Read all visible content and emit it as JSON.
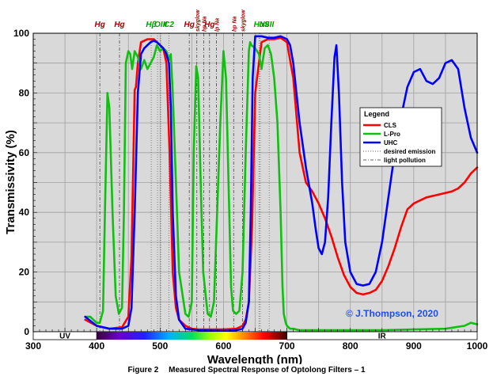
{
  "chart_data": {
    "type": "line",
    "title": "Measured Spectral Response of Optolong Filters – 1",
    "figure_label": "Figure 2",
    "xlabel": "Wavelength (nm)",
    "ylabel": "Transmissivity (%)",
    "xlim": [
      300,
      1000
    ],
    "ylim": [
      0,
      100
    ],
    "x_ticks": [
      300,
      400,
      500,
      600,
      700,
      800,
      900,
      1000
    ],
    "y_ticks": [
      0,
      20,
      40,
      60,
      80,
      100
    ],
    "grid": true,
    "legend": {
      "title": "Legend",
      "position": "right",
      "entries": [
        "CLS",
        "L-Pro",
        "UHC",
        "desired emission",
        "light pollution"
      ]
    },
    "copyright": "© J.Thompson, 2020",
    "bands": {
      "uv_label": "UV",
      "ir_label": "IR",
      "visible_start": 400,
      "visible_end": 700
    },
    "emission_lines": [
      {
        "label": "Hg",
        "nm": 405,
        "kind": "light pollution"
      },
      {
        "label": "Hg",
        "nm": 436,
        "kind": "light pollution"
      },
      {
        "label": "Hβ",
        "nm": 486,
        "kind": "desired emission"
      },
      {
        "label": "OIII",
        "nm": 496,
        "kind": "desired emission"
      },
      {
        "label": "OIII",
        "nm": 501,
        "kind": "desired emission"
      },
      {
        "label": "C2",
        "nm": 514,
        "kind": "desired emission"
      },
      {
        "label": "Hg",
        "nm": 546,
        "kind": "light pollution"
      },
      {
        "label": "skyglow",
        "nm": 558,
        "kind": "light pollution"
      },
      {
        "label": "hp Na",
        "nm": 569,
        "kind": "light pollution"
      },
      {
        "label": "Hg",
        "nm": 578,
        "kind": "light pollution"
      },
      {
        "label": "lp Na",
        "nm": 589,
        "kind": "light pollution"
      },
      {
        "label": "hp Na",
        "nm": 616,
        "kind": "light pollution"
      },
      {
        "label": "skyglow",
        "nm": 630,
        "kind": "light pollution"
      },
      {
        "label": "Hα",
        "nm": 656,
        "kind": "desired emission"
      },
      {
        "label": "NII",
        "nm": 658,
        "kind": "desired emission"
      },
      {
        "label": "SII",
        "nm": 672,
        "kind": "desired emission"
      }
    ],
    "series": [
      {
        "name": "CLS",
        "color": "#ff0000",
        "x": [
          382,
          400,
          420,
          440,
          450,
          455,
          460,
          462,
          465,
          470,
          475,
          480,
          490,
          495,
          500,
          505,
          510,
          515,
          520,
          525,
          530,
          540,
          550,
          560,
          580,
          600,
          620,
          630,
          635,
          640,
          645,
          650,
          660,
          670,
          680,
          690,
          700,
          710,
          720,
          730,
          740,
          750,
          760,
          770,
          780,
          790,
          800,
          810,
          820,
          830,
          840,
          850,
          860,
          870,
          880,
          890,
          900,
          920,
          940,
          960,
          970,
          980,
          990,
          1000
        ],
        "values": [
          4,
          2,
          1,
          1.5,
          5,
          25,
          81,
          82,
          90,
          97,
          97.5,
          98,
          98,
          97,
          96,
          95,
          90,
          60,
          20,
          8,
          4,
          2,
          1,
          0.8,
          0.8,
          0.8,
          1,
          2,
          4,
          10,
          35,
          80,
          97,
          98,
          98,
          98.5,
          97,
          85,
          60,
          50,
          47,
          43,
          38,
          32,
          25,
          19,
          15,
          13,
          12.5,
          13,
          14,
          17,
          22,
          28,
          35,
          41,
          43,
          45,
          46,
          47,
          48,
          50,
          53,
          55
        ]
      },
      {
        "name": "L-Pro",
        "color": "#10c010",
        "x": [
          382,
          390,
          395,
          400,
          405,
          410,
          413,
          417,
          420,
          425,
          430,
          435,
          440,
          443,
          446,
          450,
          453,
          456,
          460,
          465,
          470,
          475,
          480,
          485,
          490,
          495,
          500,
          505,
          510,
          514,
          517,
          520,
          525,
          530,
          540,
          545,
          550,
          553,
          557,
          560,
          564,
          568,
          575,
          580,
          585,
          590,
          595,
          600,
          604,
          608,
          612,
          615,
          620,
          625,
          630,
          635,
          640,
          642,
          644,
          650,
          656,
          660,
          665,
          670,
          675,
          680,
          685,
          690,
          693,
          695,
          698,
          700,
          705,
          710,
          720,
          750,
          800,
          850,
          900,
          950,
          980,
          990,
          1000
        ],
        "values": [
          5,
          5,
          4,
          3,
          3,
          7,
          40,
          80,
          75,
          40,
          12,
          6,
          8,
          40,
          90,
          94,
          93,
          88,
          94,
          92,
          88,
          91,
          88,
          90,
          92,
          96,
          94,
          95,
          94,
          91,
          93,
          80,
          50,
          20,
          6,
          5,
          10,
          60,
          89,
          85,
          50,
          20,
          6,
          5,
          10,
          40,
          70,
          94,
          85,
          50,
          15,
          7,
          6,
          7,
          20,
          60,
          94,
          97,
          96,
          95,
          93,
          88,
          95,
          96,
          93,
          85,
          70,
          40,
          15,
          6,
          3,
          2,
          1,
          1,
          0.5,
          0.5,
          0.5,
          0.5,
          0.8,
          1,
          2,
          3,
          2.5
        ]
      },
      {
        "name": "UHC",
        "color": "#0000ff",
        "x": [
          382,
          400,
          420,
          440,
          450,
          455,
          460,
          465,
          470,
          475,
          480,
          485,
          490,
          495,
          500,
          505,
          510,
          514,
          517,
          520,
          525,
          530,
          540,
          560,
          600,
          620,
          630,
          635,
          640,
          643,
          646,
          650,
          660,
          670,
          680,
          690,
          700,
          705,
          710,
          715,
          720,
          730,
          740,
          745,
          750,
          755,
          760,
          765,
          770,
          775,
          778,
          782,
          787,
          792,
          800,
          810,
          820,
          830,
          840,
          850,
          860,
          870,
          880,
          890,
          900,
          910,
          920,
          930,
          940,
          950,
          960,
          970,
          980,
          990,
          1000
        ],
        "values": [
          5,
          2,
          1,
          1,
          2,
          8,
          40,
          80,
          93,
          95,
          96,
          97,
          97.5,
          97,
          96,
          95,
          93,
          90,
          75,
          40,
          12,
          4,
          1,
          0.5,
          0.3,
          0.5,
          1,
          3,
          10,
          40,
          85,
          99,
          99,
          98.5,
          98.5,
          99,
          98,
          96,
          90,
          80,
          70,
          55,
          43,
          35,
          28,
          26,
          30,
          45,
          70,
          92,
          96,
          80,
          50,
          30,
          20,
          16,
          15.5,
          16,
          20,
          30,
          45,
          60,
          72,
          82,
          87,
          88,
          84,
          83,
          85,
          90,
          91,
          88,
          75,
          65,
          60
        ]
      }
    ]
  }
}
